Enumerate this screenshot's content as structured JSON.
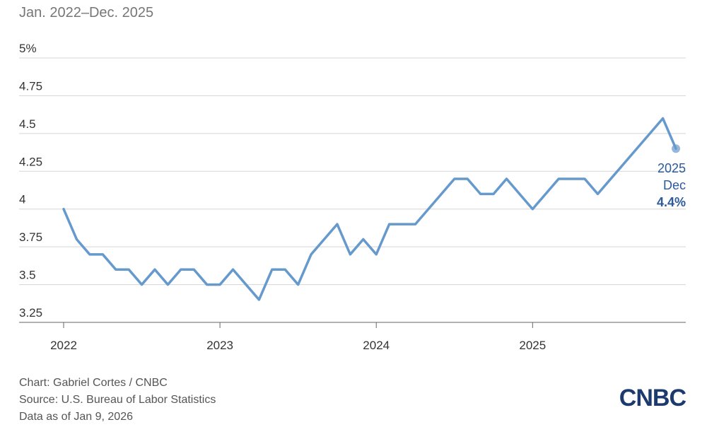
{
  "chart_data": {
    "type": "line",
    "subtitle": "Jan. 2022–Dec. 2025",
    "categories": [
      "2022",
      null,
      null,
      null,
      null,
      null,
      null,
      null,
      null,
      null,
      null,
      null,
      "2023",
      null,
      null,
      null,
      null,
      null,
      null,
      null,
      null,
      null,
      null,
      null,
      "2024",
      null,
      null,
      null,
      null,
      null,
      null,
      null,
      null,
      null,
      null,
      null,
      "2025",
      null,
      null,
      null,
      null,
      null,
      null,
      null,
      null,
      null,
      null,
      null
    ],
    "series": [
      {
        "color": "#6699cc",
        "values": [
          4.0,
          3.8,
          3.7,
          3.7,
          3.6,
          3.6,
          3.5,
          3.6,
          3.5,
          3.6,
          3.6,
          3.5,
          3.5,
          3.6,
          3.5,
          3.4,
          3.6,
          3.6,
          3.5,
          3.7,
          3.8,
          3.9,
          3.7,
          3.8,
          3.7,
          3.9,
          3.9,
          3.9,
          4.0,
          4.1,
          4.2,
          4.2,
          4.1,
          4.1,
          4.2,
          4.1,
          4.0,
          4.1,
          4.2,
          4.2,
          4.2,
          4.1,
          4.2,
          4.3,
          4.4,
          4.5,
          4.6,
          4.4
        ]
      }
    ],
    "ylim": [
      3.25,
      5
    ],
    "yticks": [
      3.25,
      3.5,
      3.75,
      4,
      4.25,
      4.5,
      4.75,
      {
        "value": 5,
        "label": "5%"
      }
    ],
    "grid": true,
    "annotation": [
      "2025",
      "Dec",
      "4.4%"
    ],
    "credit": "Chart: Gabriel Cortes / CNBC",
    "source": "Source: U.S. Bureau of Labor Statistics",
    "note": "Data as of Jan 9, 2026",
    "logo": "CNBC"
  }
}
